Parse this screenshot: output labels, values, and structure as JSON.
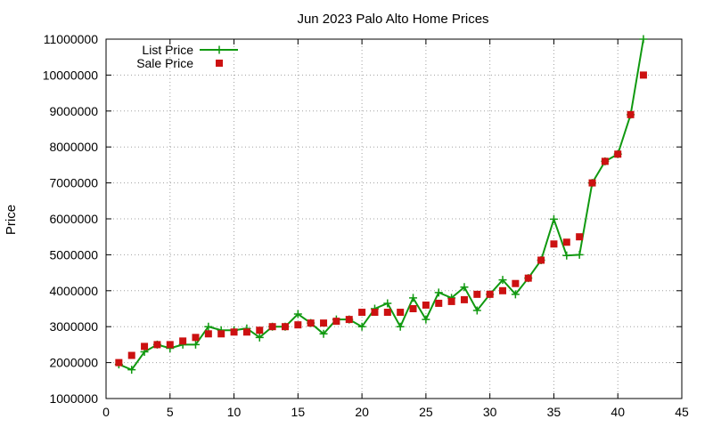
{
  "chart_data": {
    "type": "line",
    "title": "Jun 2023 Palo Alto Home Prices",
    "xlabel": "",
    "ylabel": "Price",
    "xlim": [
      0,
      45
    ],
    "ylim": [
      1000000,
      11000000
    ],
    "xticks": [
      0,
      5,
      10,
      15,
      20,
      25,
      30,
      35,
      40,
      45
    ],
    "yticks": [
      1000000,
      2000000,
      3000000,
      4000000,
      5000000,
      6000000,
      7000000,
      8000000,
      9000000,
      10000000,
      11000000
    ],
    "grid": true,
    "legend": "top-left",
    "x": [
      1,
      2,
      3,
      4,
      5,
      6,
      7,
      8,
      9,
      10,
      11,
      12,
      13,
      14,
      15,
      16,
      17,
      18,
      19,
      20,
      21,
      22,
      23,
      24,
      25,
      26,
      27,
      28,
      29,
      30,
      31,
      32,
      33,
      34,
      35,
      36,
      37,
      38,
      39,
      40,
      41,
      42
    ],
    "series": [
      {
        "name": "List Price",
        "style": "line-plus",
        "color": "#109910",
        "values": [
          1950000,
          1800000,
          2300000,
          2500000,
          2400000,
          2500000,
          2500000,
          3000000,
          2900000,
          2900000,
          2950000,
          2700000,
          3000000,
          3000000,
          3350000,
          3100000,
          2800000,
          3200000,
          3200000,
          3000000,
          3500000,
          3650000,
          3000000,
          3800000,
          3200000,
          3950000,
          3800000,
          4100000,
          3450000,
          3900000,
          4300000,
          3900000,
          4350000,
          4850000,
          5990000,
          4980000,
          5000000,
          7000000,
          7600000,
          7800000,
          8900000,
          11000000
        ]
      },
      {
        "name": "Sale Price",
        "style": "square-markers",
        "color": "#cc1111",
        "values": [
          2000000,
          2200000,
          2450000,
          2500000,
          2500000,
          2600000,
          2700000,
          2800000,
          2800000,
          2850000,
          2850000,
          2900000,
          3000000,
          3000000,
          3050000,
          3100000,
          3100000,
          3150000,
          3200000,
          3400000,
          3400000,
          3400000,
          3400000,
          3500000,
          3600000,
          3650000,
          3700000,
          3750000,
          3900000,
          3900000,
          4000000,
          4200000,
          4350000,
          4850000,
          5300000,
          5350000,
          5500000,
          7000000,
          7600000,
          7800000,
          8900000,
          10000000
        ]
      }
    ]
  }
}
